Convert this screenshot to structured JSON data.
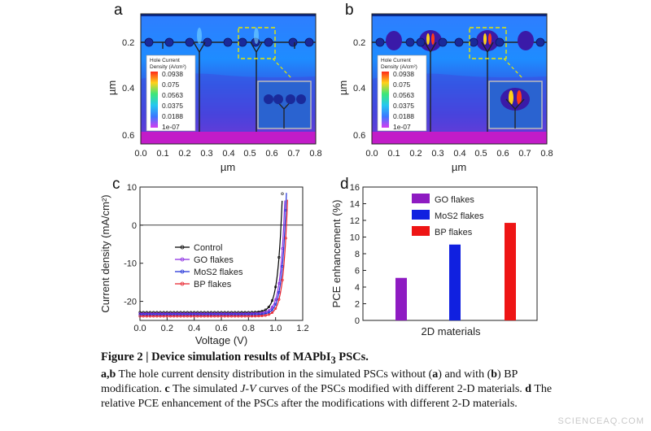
{
  "figure": {
    "panels": {
      "a": {
        "label": "a"
      },
      "b": {
        "label": "b"
      },
      "c": {
        "label": "c"
      },
      "d": {
        "label": "d"
      }
    },
    "sim": {
      "xticks": [
        "0.0",
        "0.1",
        "0.2",
        "0.3",
        "0.4",
        "0.5",
        "0.6",
        "0.7",
        "0.8"
      ],
      "yticks": [
        "0.2",
        "0.4",
        "0.6"
      ],
      "xlabel": "µm",
      "ylabel": "µm",
      "colorbar_title": [
        "Hole Current",
        "Density (A/cm²)"
      ],
      "colorbar_values": [
        "0.0938",
        "0.075",
        "0.0563",
        "0.0375",
        "0.0188",
        "1e-07"
      ],
      "colorbar_colors": [
        "#ff2a1a",
        "#ffd21a",
        "#3ce67a",
        "#26c8f0",
        "#3c78ff",
        "#d63cf0"
      ]
    },
    "caption": {
      "title": "Figure 2 | Device simulation results of MAPbI",
      "title_sub": "3",
      "title_end": " PSCs.",
      "ab_label": "a,b",
      "ab_text": " The hole current density distribution in the simulated PSCs without (",
      "ab_a": "a",
      "ab_mid": ") and with (",
      "ab_b": "b",
      "ab_end": ") BP modification.",
      "c_label": "c",
      "c_text_1": " The simulated ",
      "c_jv": "J-V",
      "c_text_2": " curves of the PSCs modified with different 2-D materials.",
      "d_label": "d",
      "d_text": " The relative PCE enhancement of the PSCs after the modifications with different 2-D materials."
    },
    "watermark": "SCIENCEAQ.COM"
  },
  "chart_data": [
    {
      "type": "line",
      "panel": "c",
      "xlabel": "Voltage (V)",
      "ylabel": "Current density (mA/cm²)",
      "xlim": [
        0.0,
        1.2
      ],
      "ylim": [
        -25,
        10
      ],
      "xticks": [
        "0.0",
        "0.2",
        "0.4",
        "0.6",
        "0.8",
        "1.0",
        "1.2"
      ],
      "yticks": [
        "10",
        "0",
        "-10",
        "-20"
      ],
      "legend_position": "center-left",
      "series": [
        {
          "name": "Control",
          "color": "#000000",
          "jsc": -22.9,
          "voc": 1.04
        },
        {
          "name": "GO flakes",
          "color": "#8a2be2",
          "jsc": -23.2,
          "voc": 1.06
        },
        {
          "name": "MoS2 flakes",
          "color": "#1f2fd8",
          "jsc": -23.5,
          "voc": 1.07
        },
        {
          "name": "BP flakes",
          "color": "#e8202a",
          "jsc": -23.9,
          "voc": 1.08
        }
      ]
    },
    {
      "type": "bar",
      "panel": "d",
      "xlabel": "2D materials",
      "ylabel": "PCE enhancement (%)",
      "ylim": [
        0,
        16
      ],
      "yticks": [
        "0",
        "2",
        "4",
        "6",
        "8",
        "10",
        "12",
        "14",
        "16"
      ],
      "categories": [
        "GO flakes",
        "MoS2 flakes",
        "BP flakes"
      ],
      "values": [
        5.1,
        9.1,
        11.7
      ],
      "colors": [
        "#8e1bc2",
        "#1020e0",
        "#ee1515"
      ],
      "legend_position": "top-center"
    }
  ]
}
